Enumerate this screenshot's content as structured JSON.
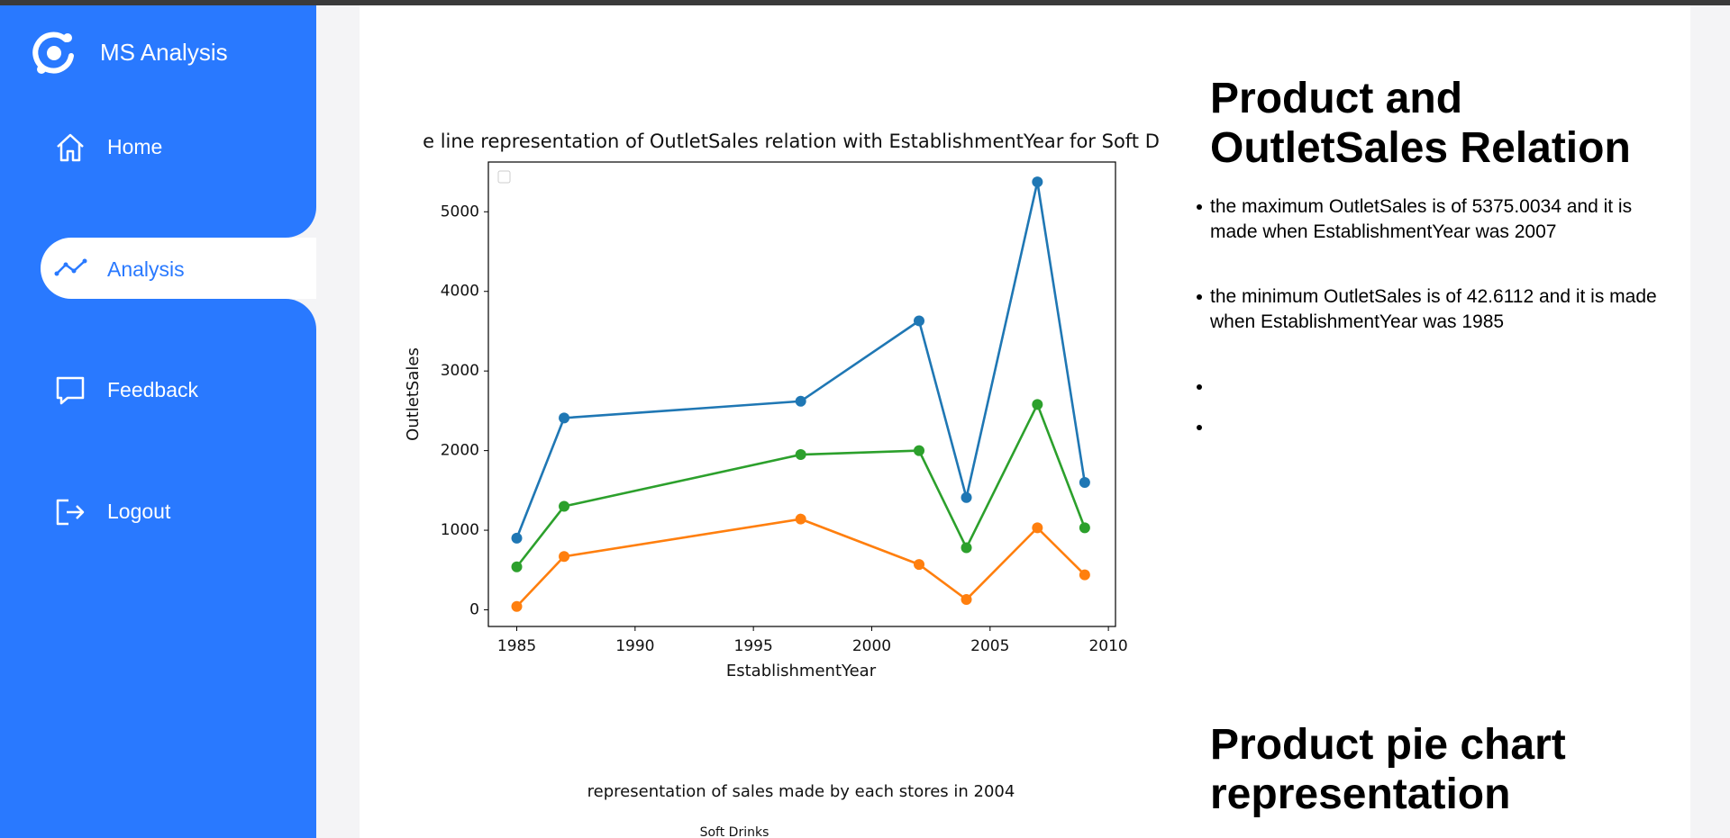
{
  "sidebar": {
    "brand": "MS Analysis",
    "nav": [
      "Home",
      "Analysis",
      "Feedback",
      "Logout"
    ]
  },
  "chart_data": {
    "type": "line",
    "title": "e line representation of OutletSales relation with EstablishmentYear for Soft D",
    "xlabel": "EstablishmentYear",
    "ylabel": "OutletSales",
    "x": [
      1985,
      1987,
      1997,
      2002,
      2004,
      2007,
      2009
    ],
    "series": [
      {
        "color": "#1f77b4",
        "values": [
          900,
          2410,
          2620,
          3630,
          1410,
          5375,
          1600
        ]
      },
      {
        "color": "#ff7f0e",
        "values": [
          43,
          670,
          1140,
          570,
          130,
          1030,
          440
        ]
      },
      {
        "color": "#2ca02c",
        "values": [
          540,
          1300,
          1950,
          2000,
          780,
          2580,
          1030
        ]
      }
    ],
    "xlim": [
      1983.8,
      2010.3
    ],
    "ylim": [
      -209,
      5625
    ],
    "xticks": [
      1985,
      1990,
      1995,
      2000,
      2005,
      2010
    ],
    "yticks": [
      0,
      1000,
      2000,
      3000,
      4000,
      5000
    ]
  },
  "sections": [
    {
      "heading": "Product and OutletSales Relation",
      "bullets": [
        "the maximum OutletSales is of 5375.0034 and it is made when EstablishmentYear was 2007",
        "the minimum OutletSales is of 42.6112 and it is made when EstablishmentYear was 1985"
      ]
    },
    {
      "heading": "Product pie chart representation"
    }
  ],
  "pie_chart": {
    "title": "representation of sales made by each stores in 2004",
    "labels": [
      "Soft Drinks"
    ]
  }
}
